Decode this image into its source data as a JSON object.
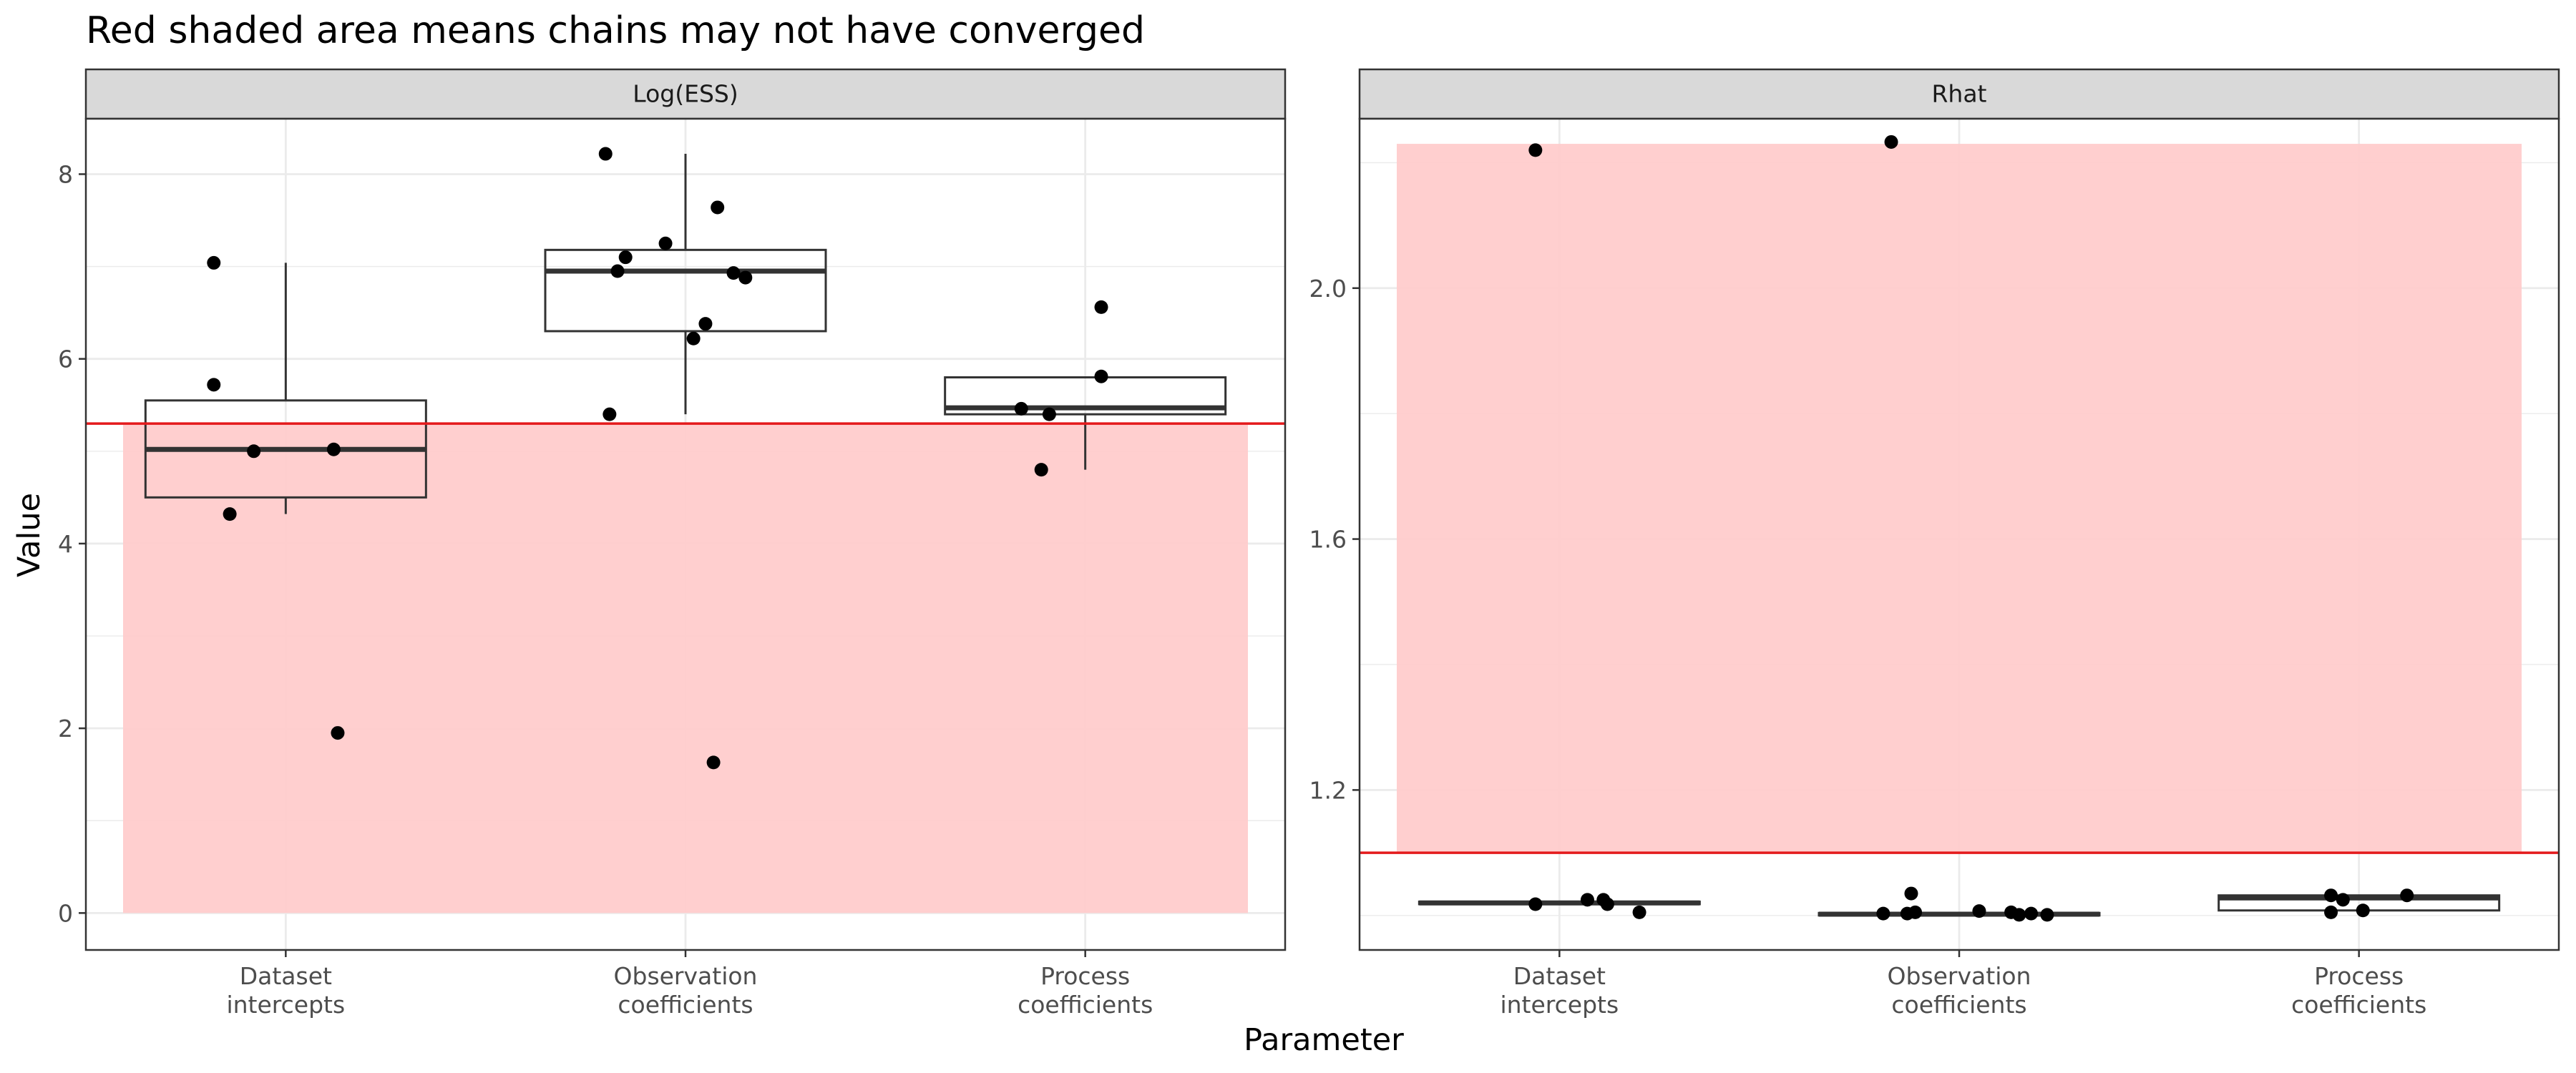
{
  "title": "Red shaded area means chains may not have converged",
  "xlabel": "Parameter",
  "ylabel": "Value",
  "colors": {
    "shade": "#ffcccc",
    "threshold": "#e41a1c",
    "points": "#000000",
    "box": "#333333",
    "strip_bg": "#d9d9d9",
    "grid": "#ebebeb",
    "panel_border": "#333333"
  },
  "chart_data": [
    {
      "type": "boxplot",
      "facet": "Log(ESS)",
      "categories": [
        "Dataset\nintercepts",
        "Observation\ncoefficients",
        "Process\ncoefficients"
      ],
      "ylim": [
        -0.4,
        8.6
      ],
      "yticks": [
        0,
        2,
        4,
        6,
        8
      ],
      "y_tick_labels": [
        "0",
        "2",
        "4",
        "6",
        "8"
      ],
      "threshold": 5.3,
      "shade": {
        "from": 0,
        "to": 5.3
      },
      "boxes": [
        {
          "q1": 4.5,
          "median": 5.02,
          "q3": 5.55,
          "whisker_low": 4.32,
          "whisker_high": 7.04
        },
        {
          "q1": 6.3,
          "median": 6.95,
          "q3": 7.18,
          "whisker_low": 5.4,
          "whisker_high": 8.22
        },
        {
          "q1": 5.4,
          "median": 5.47,
          "q3": 5.8,
          "whisker_low": 4.8,
          "whisker_high": 5.8
        }
      ],
      "points": [
        {
          "category": 0,
          "jitter": -0.18,
          "y": 7.04
        },
        {
          "category": 0,
          "jitter": -0.18,
          "y": 5.72
        },
        {
          "category": 0,
          "jitter": -0.08,
          "y": 5.0
        },
        {
          "category": 0,
          "jitter": 0.12,
          "y": 5.02
        },
        {
          "category": 0,
          "jitter": -0.14,
          "y": 4.32
        },
        {
          "category": 0,
          "jitter": 0.13,
          "y": 1.95
        },
        {
          "category": 1,
          "jitter": -0.2,
          "y": 8.22
        },
        {
          "category": 1,
          "jitter": 0.08,
          "y": 7.64
        },
        {
          "category": 1,
          "jitter": -0.05,
          "y": 7.25
        },
        {
          "category": 1,
          "jitter": -0.15,
          "y": 7.1
        },
        {
          "category": 1,
          "jitter": -0.17,
          "y": 6.95
        },
        {
          "category": 1,
          "jitter": 0.12,
          "y": 6.93
        },
        {
          "category": 1,
          "jitter": 0.15,
          "y": 6.88
        },
        {
          "category": 1,
          "jitter": 0.05,
          "y": 6.38
        },
        {
          "category": 1,
          "jitter": 0.02,
          "y": 6.22
        },
        {
          "category": 1,
          "jitter": -0.19,
          "y": 5.4
        },
        {
          "category": 1,
          "jitter": 0.07,
          "y": 1.63
        },
        {
          "category": 2,
          "jitter": 0.04,
          "y": 6.56
        },
        {
          "category": 2,
          "jitter": 0.04,
          "y": 5.81
        },
        {
          "category": 2,
          "jitter": -0.16,
          "y": 5.46
        },
        {
          "category": 2,
          "jitter": -0.09,
          "y": 5.4
        },
        {
          "category": 2,
          "jitter": -0.11,
          "y": 4.8
        }
      ]
    },
    {
      "type": "boxplot",
      "facet": "Rhat",
      "categories": [
        "Dataset\nintercepts",
        "Observation\ncoefficients",
        "Process\ncoefficients"
      ],
      "ylim": [
        0.945,
        2.27
      ],
      "yticks": [
        1.2,
        1.6,
        2.0
      ],
      "y_tick_labels": [
        "1.2",
        "1.6",
        "2.0"
      ],
      "threshold": 1.1,
      "shade": {
        "from": 1.1,
        "to": 2.23
      },
      "boxes": [
        {
          "q1": 1.018,
          "median": 1.02,
          "q3": 1.022,
          "whisker_low": 1.018,
          "whisker_high": 1.022
        },
        {
          "q1": 1.0,
          "median": 1.002,
          "q3": 1.004,
          "whisker_low": 1.0,
          "whisker_high": 1.004
        },
        {
          "q1": 1.008,
          "median": 1.028,
          "q3": 1.032,
          "whisker_low": 1.008,
          "whisker_high": 1.032
        }
      ],
      "points": [
        {
          "category": 0,
          "jitter": -0.06,
          "y": 2.22
        },
        {
          "category": 0,
          "jitter": -0.06,
          "y": 1.018
        },
        {
          "category": 0,
          "jitter": 0.07,
          "y": 1.025
        },
        {
          "category": 0,
          "jitter": 0.11,
          "y": 1.025
        },
        {
          "category": 0,
          "jitter": 0.12,
          "y": 1.018
        },
        {
          "category": 0,
          "jitter": 0.2,
          "y": 1.005
        },
        {
          "category": 1,
          "jitter": -0.17,
          "y": 2.233
        },
        {
          "category": 1,
          "jitter": -0.19,
          "y": 1.003
        },
        {
          "category": 1,
          "jitter": -0.13,
          "y": 1.003
        },
        {
          "category": 1,
          "jitter": -0.11,
          "y": 1.005
        },
        {
          "category": 1,
          "jitter": -0.12,
          "y": 1.035
        },
        {
          "category": 1,
          "jitter": 0.05,
          "y": 1.007
        },
        {
          "category": 1,
          "jitter": 0.13,
          "y": 1.005
        },
        {
          "category": 1,
          "jitter": 0.18,
          "y": 1.003
        },
        {
          "category": 1,
          "jitter": 0.22,
          "y": 1.001
        },
        {
          "category": 1,
          "jitter": 0.15,
          "y": 1.001
        },
        {
          "category": 2,
          "jitter": -0.07,
          "y": 1.032
        },
        {
          "category": 2,
          "jitter": -0.04,
          "y": 1.025
        },
        {
          "category": 2,
          "jitter": -0.07,
          "y": 1.005
        },
        {
          "category": 2,
          "jitter": 0.01,
          "y": 1.008
        },
        {
          "category": 2,
          "jitter": 0.12,
          "y": 1.032
        }
      ]
    }
  ]
}
